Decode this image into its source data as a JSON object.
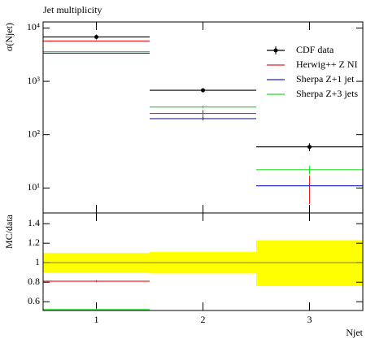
{
  "chart_data": [
    {
      "type": "histogram",
      "title": "Jet multiplicity",
      "ylabel": "σ(Njet)",
      "bins": [
        0.5,
        1.5,
        2.5,
        3.5
      ],
      "log_y": true,
      "ylim": [
        3.4,
        13000
      ],
      "yticks": [
        {
          "value": 10,
          "label": "10¹"
        },
        {
          "value": 100,
          "label": "10²"
        },
        {
          "value": 1000,
          "label": "10³"
        },
        {
          "value": 10000,
          "label": "10⁴"
        }
      ],
      "xticks": [
        1,
        2,
        3
      ],
      "legend": "upper right",
      "series": [
        {
          "name": "CDF data",
          "color": "#000000",
          "style": "points",
          "values": [
            6800,
            680,
            59
          ],
          "errors": [
            700,
            60,
            10
          ]
        },
        {
          "name": "Herwig++ Z NI",
          "color": "#ee2222",
          "style": "steps",
          "values": [
            5700,
            250,
            11
          ],
          "errors": [
            150,
            40,
            6
          ]
        },
        {
          "name": "Sherpa Z+1 jet",
          "color": "#2222cc",
          "style": "steps",
          "values": [
            3370,
            200,
            11
          ],
          "errors": [
            60,
            15,
            0.5
          ]
        },
        {
          "name": "Sherpa Z+3 jets",
          "color": "#22dd22",
          "style": "steps",
          "values": [
            3600,
            330,
            22
          ],
          "errors": [
            60,
            20,
            4
          ]
        }
      ]
    },
    {
      "type": "histogram",
      "ylabel": "MC/data",
      "xlabel": "Njet",
      "bins": [
        0.5,
        1.5,
        2.5,
        3.5
      ],
      "ylim": [
        0.51,
        1.51
      ],
      "yticks": [
        0.6,
        0.8,
        1,
        1.2,
        1.4
      ],
      "xticks": [
        1,
        2,
        3
      ],
      "band": {
        "color": "#ffff00",
        "low": [
          0.9,
          0.89,
          0.76
        ],
        "high": [
          1.1,
          1.11,
          1.23
        ]
      },
      "series": [
        {
          "color": "#808080",
          "style": "steps",
          "values": [
            1,
            1,
            1
          ]
        },
        {
          "color": "#ee2222",
          "style": "steps",
          "values": [
            0.81,
            null,
            null
          ],
          "errors": [
            0.01,
            null,
            null
          ]
        },
        {
          "color": "#22dd22",
          "style": "steps",
          "values": [
            0.52,
            null,
            null
          ],
          "errors": [
            0.01,
            null,
            null
          ]
        }
      ]
    }
  ]
}
